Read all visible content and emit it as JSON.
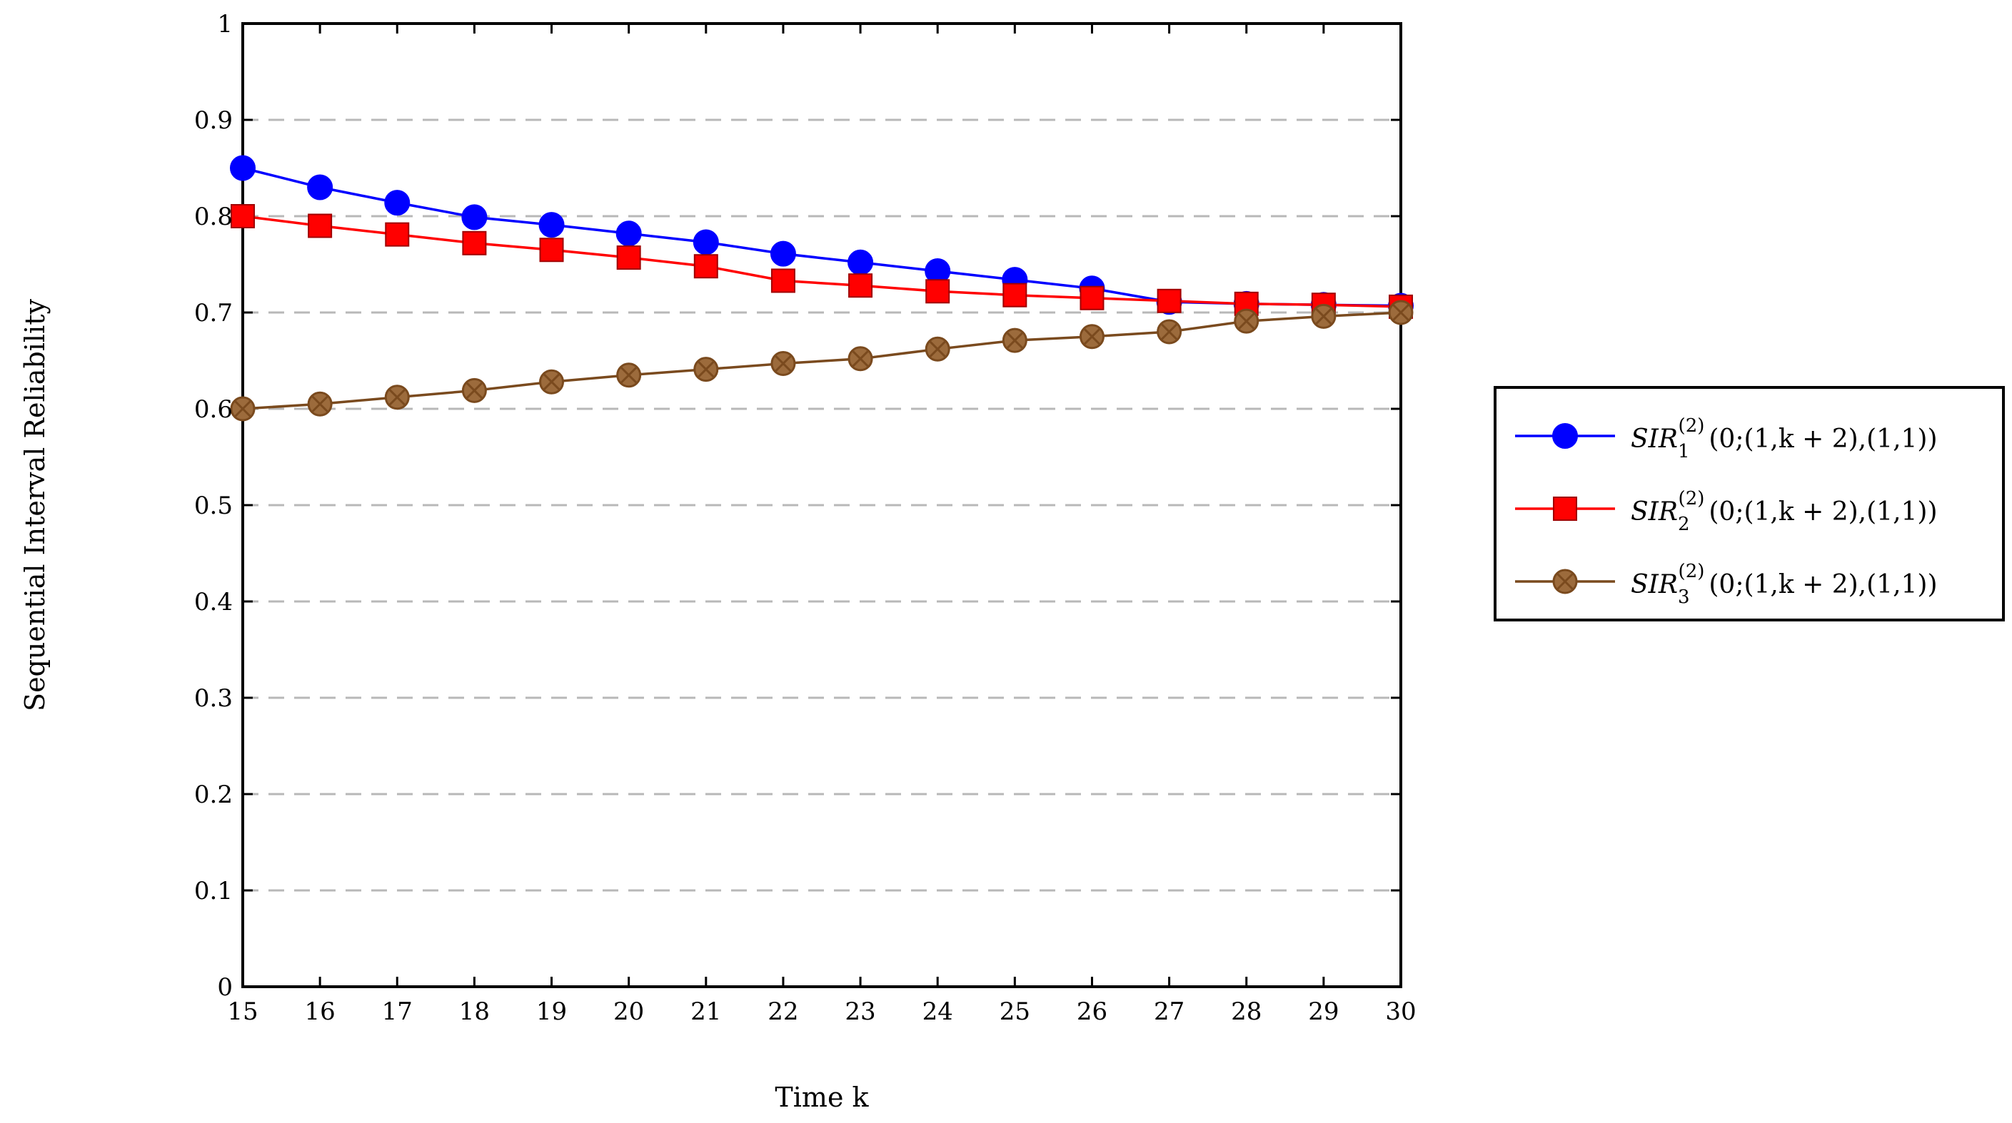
{
  "chart_data": {
    "type": "line",
    "xlabel": "Time k",
    "ylabel": "Sequential Interval Reliability",
    "xlim": [
      15,
      30
    ],
    "ylim": [
      0,
      1
    ],
    "grid": "horizontal dashed",
    "legend_position": "right, outside plot",
    "x": [
      15,
      16,
      17,
      18,
      19,
      20,
      21,
      22,
      23,
      24,
      25,
      26,
      27,
      28,
      29,
      30
    ],
    "x_ticks": [
      "15",
      "16",
      "17",
      "18",
      "19",
      "20",
      "21",
      "22",
      "23",
      "24",
      "25",
      "26",
      "27",
      "28",
      "29",
      "30"
    ],
    "y_ticks": [
      "0",
      "0.1",
      "0.2",
      "0.3",
      "0.4",
      "0.5",
      "0.6",
      "0.7",
      "0.8",
      "0.9",
      "1"
    ],
    "series": [
      {
        "name": "SIR_1^(2)(0;(1,k+2),(1,1))",
        "label_main": "SIR",
        "label_sub": "1",
        "label_sup": "(2)",
        "label_args": "(0;(1,k + 2),(1,1))",
        "color": "#0000ff",
        "marker": "circle",
        "values": [
          0.85,
          0.83,
          0.814,
          0.799,
          0.791,
          0.782,
          0.773,
          0.761,
          0.752,
          0.743,
          0.734,
          0.725,
          0.711,
          0.709,
          0.708,
          0.707
        ]
      },
      {
        "name": "SIR_2^(2)(0;(1,k+2),(1,1))",
        "label_main": "SIR",
        "label_sub": "2",
        "label_sup": "(2)",
        "label_args": "(0;(1,k + 2),(1,1))",
        "color": "#ff0000",
        "marker": "square",
        "values": [
          0.8,
          0.79,
          0.781,
          0.772,
          0.765,
          0.757,
          0.748,
          0.733,
          0.728,
          0.722,
          0.718,
          0.715,
          0.712,
          0.709,
          0.708,
          0.706
        ]
      },
      {
        "name": "SIR_3^(2)(0;(1,k+2),(1,1))",
        "label_main": "SIR",
        "label_sub": "3",
        "label_sup": "(2)",
        "label_args": "(0;(1,k + 2),(1,1))",
        "color": "#7a4a1e",
        "marker_fill": "#9c6b3c",
        "marker": "circle-cross",
        "values": [
          0.6,
          0.605,
          0.612,
          0.619,
          0.628,
          0.635,
          0.641,
          0.647,
          0.652,
          0.662,
          0.671,
          0.675,
          0.68,
          0.691,
          0.696,
          0.7
        ]
      }
    ]
  }
}
